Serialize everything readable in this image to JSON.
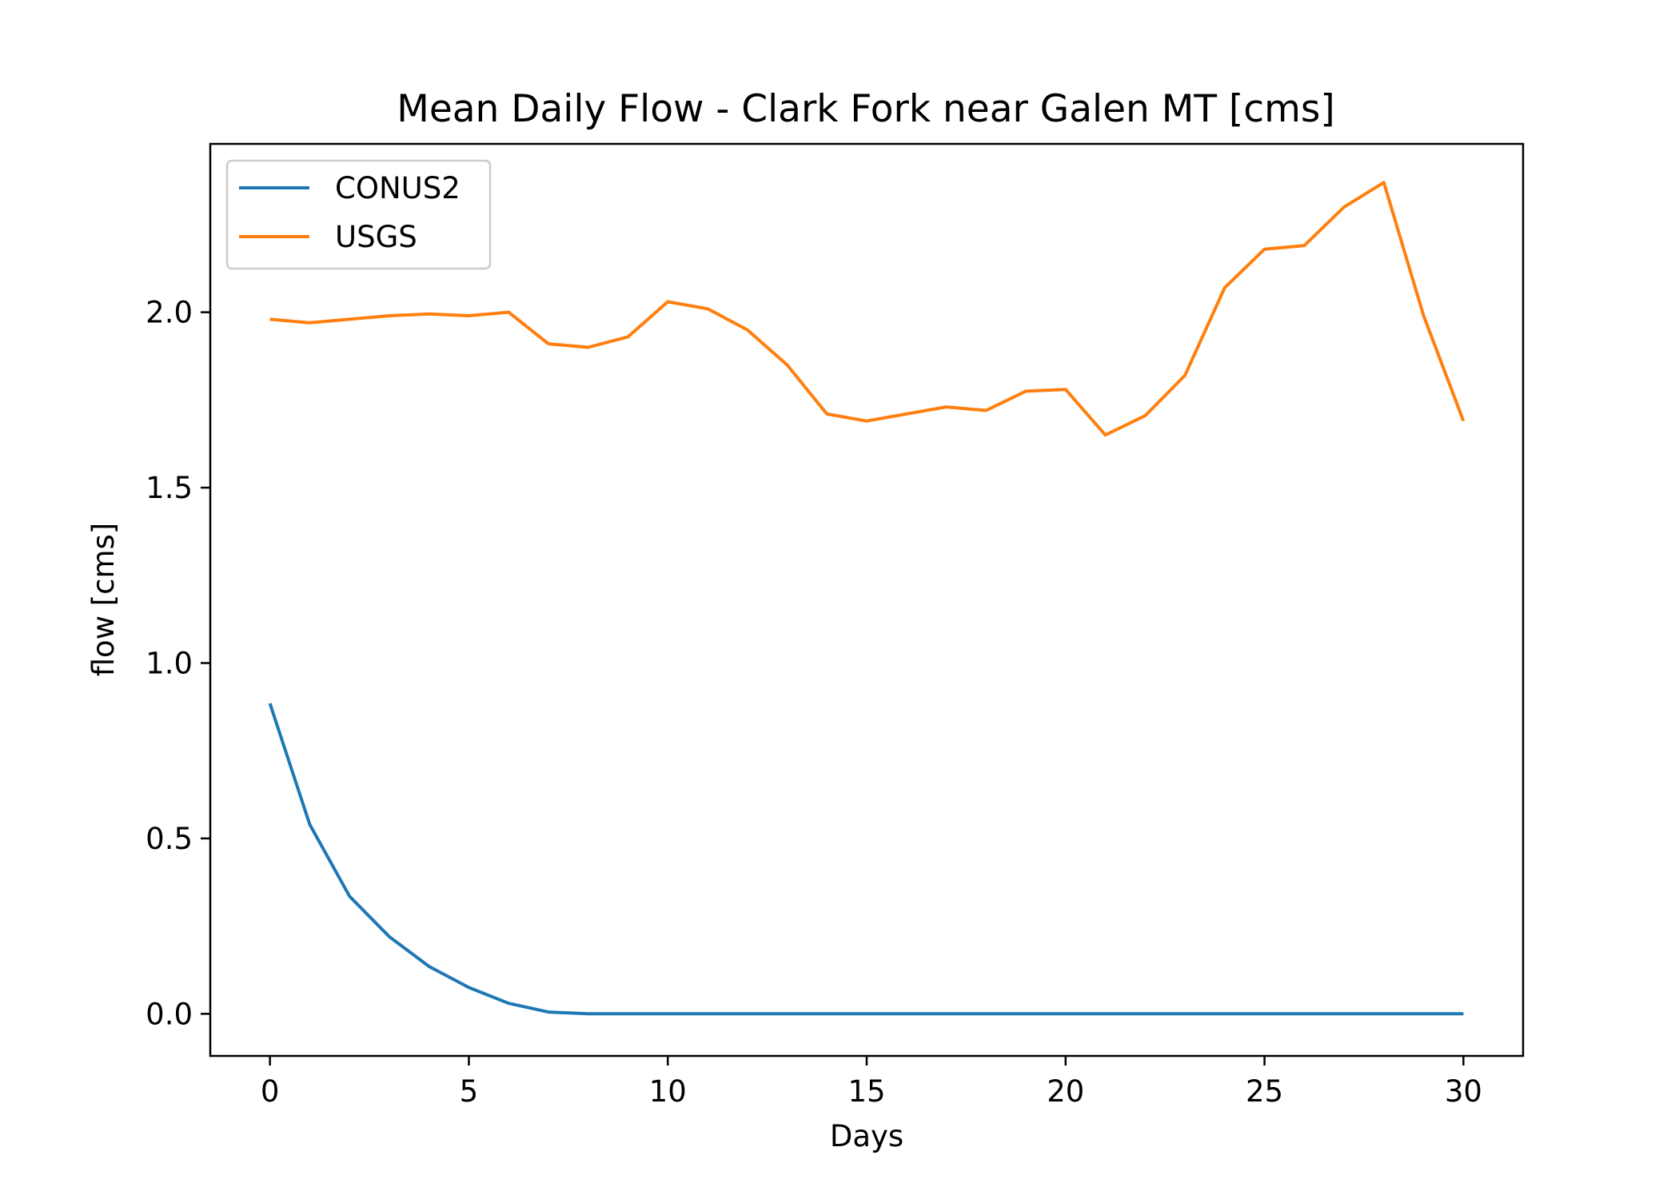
{
  "chart_data": {
    "type": "line",
    "title": "Mean Daily Flow - Clark Fork near Galen MT [cms]",
    "xlabel": "Days",
    "ylabel": "flow [cms]",
    "xlim": [
      -1.5,
      31.5
    ],
    "ylim": [
      -0.12,
      2.48
    ],
    "xticks": [
      0,
      5,
      10,
      15,
      20,
      25,
      30
    ],
    "xtick_labels": [
      "0",
      "5",
      "10",
      "15",
      "20",
      "25",
      "30"
    ],
    "yticks": [
      0.0,
      0.5,
      1.0,
      1.5,
      2.0
    ],
    "ytick_labels": [
      "0.0",
      "0.5",
      "1.0",
      "1.5",
      "2.0"
    ],
    "grid": false,
    "legend_position": "top-left",
    "x": [
      0,
      1,
      2,
      3,
      4,
      5,
      6,
      7,
      8,
      9,
      10,
      11,
      12,
      13,
      14,
      15,
      16,
      17,
      18,
      19,
      20,
      21,
      22,
      23,
      24,
      25,
      26,
      27,
      28,
      29,
      30
    ],
    "series": [
      {
        "name": "CONUS2",
        "color": "#1f77b4",
        "values": [
          0.885,
          0.54,
          0.335,
          0.22,
          0.135,
          0.075,
          0.03,
          0.005,
          0.0,
          0.0,
          0.0,
          0.0,
          0.0,
          0.0,
          0.0,
          0.0,
          0.0,
          0.0,
          0.0,
          0.0,
          0.0,
          0.0,
          0.0,
          0.0,
          0.0,
          0.0,
          0.0,
          0.0,
          0.0,
          0.0,
          0.0
        ]
      },
      {
        "name": "USGS",
        "color": "#ff7f0e",
        "values": [
          1.98,
          1.97,
          1.98,
          1.99,
          1.995,
          1.99,
          2.0,
          1.91,
          1.9,
          1.93,
          2.03,
          2.01,
          1.95,
          1.85,
          1.71,
          1.69,
          1.71,
          1.73,
          1.72,
          1.775,
          1.78,
          1.65,
          1.705,
          1.82,
          2.07,
          2.18,
          2.19,
          2.3,
          2.37,
          1.99,
          1.69
        ]
      }
    ]
  }
}
